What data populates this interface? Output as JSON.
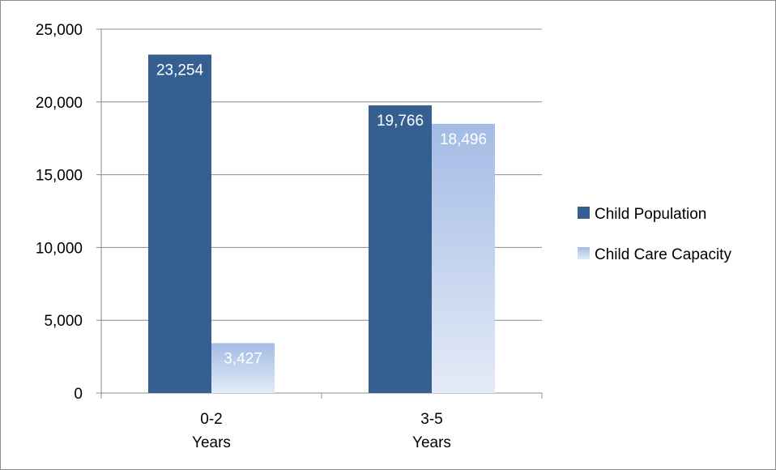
{
  "chart_data": {
    "type": "bar",
    "title": "",
    "xlabel": "",
    "ylabel": "",
    "categories": [
      [
        "0-2",
        "Years"
      ],
      [
        "3-5",
        "Years"
      ]
    ],
    "series": [
      {
        "name": "Child Population",
        "values": [
          23254,
          19766
        ],
        "labels": [
          "23,254",
          "19,766"
        ],
        "color": "#355f91"
      },
      {
        "name": "Child Care Capacity",
        "values": [
          3427,
          18496
        ],
        "labels": [
          "3,427",
          "18,496"
        ],
        "color": "#a9bfe6"
      }
    ],
    "ylim": [
      0,
      25000
    ],
    "yticks": [
      0,
      5000,
      10000,
      15000,
      20000,
      25000
    ],
    "ytick_labels": [
      "0",
      "5,000",
      "10,000",
      "15,000",
      "20,000",
      "25,000"
    ],
    "grid": true,
    "legend_position": "right"
  }
}
